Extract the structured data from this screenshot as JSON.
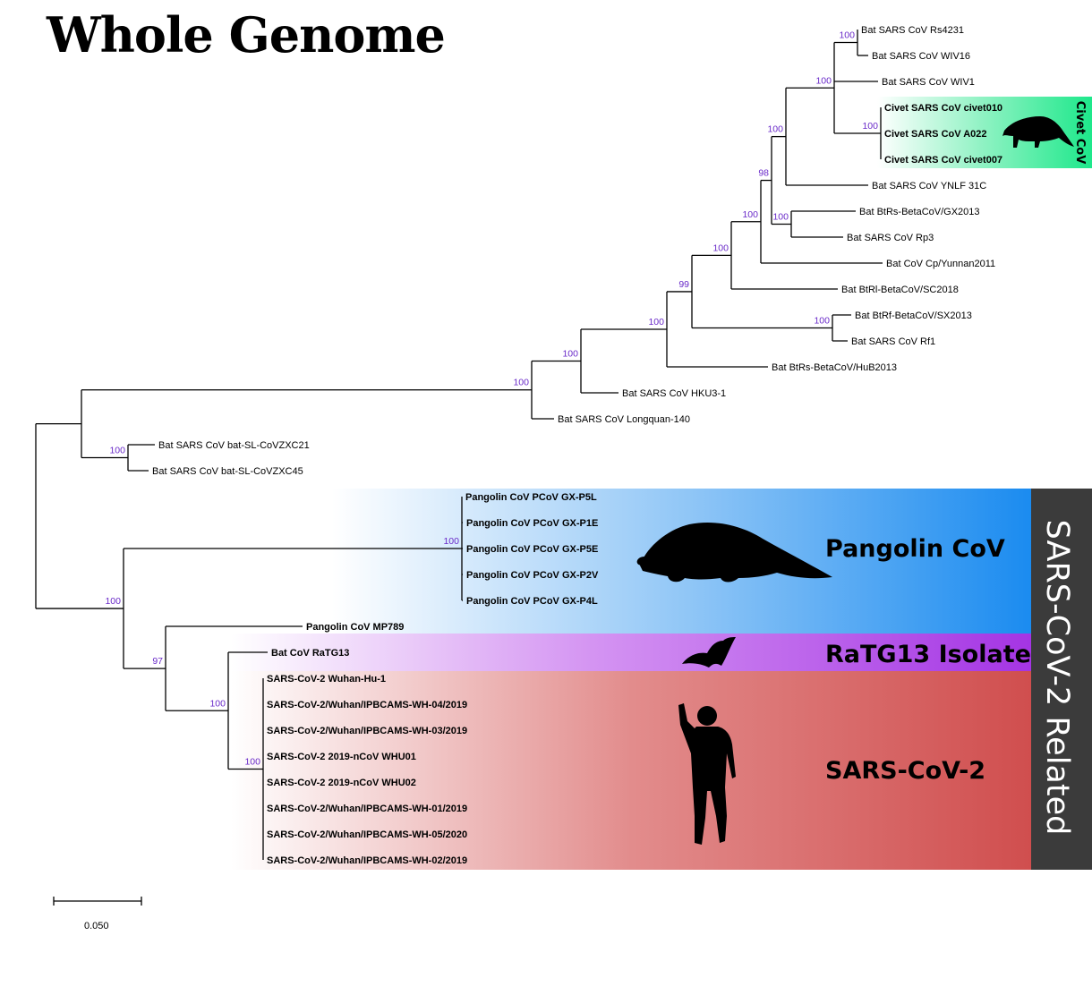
{
  "title": "Whole Genome",
  "colors": {
    "civet": "#1ee88b",
    "pangolin": "#1a8bf0",
    "ratg13": "#a434e4",
    "sars2": "#d45151",
    "related_bar": "#3b3b3b",
    "bootstrap": "#6a2bc9"
  },
  "groups": {
    "civet": "Civet CoV",
    "pangolin": "Pangolin CoV",
    "ratg13": "RaTG13 Isolate",
    "sars2": "SARS-CoV-2",
    "related": "SARS-CoV-2 Related"
  },
  "scale_bar": {
    "value": "0.050"
  },
  "leaves": [
    {
      "id": "rs4231",
      "label": "Bat SARS CoV Rs4231",
      "bold": false
    },
    {
      "id": "wiv16",
      "label": "Bat SARS CoV WIV16",
      "bold": false
    },
    {
      "id": "wiv1",
      "label": "Bat SARS CoV WIV1",
      "bold": false
    },
    {
      "id": "civet010",
      "label": "Civet SARS CoV civet010",
      "bold": true
    },
    {
      "id": "a022",
      "label": "Civet SARS CoV A022",
      "bold": true
    },
    {
      "id": "civet007",
      "label": "Civet SARS CoV civet007",
      "bold": true
    },
    {
      "id": "ynlf",
      "label": "Bat SARS CoV YNLF 31C",
      "bold": false
    },
    {
      "id": "gx2013",
      "label": "Bat BtRs-BetaCoV/GX2013",
      "bold": false
    },
    {
      "id": "rp3",
      "label": "Bat SARS CoV Rp3",
      "bold": false
    },
    {
      "id": "cpyunnan",
      "label": "Bat CoV Cp/Yunnan2011",
      "bold": false
    },
    {
      "id": "sc2018",
      "label": "Bat BtRl-BetaCoV/SC2018",
      "bold": false
    },
    {
      "id": "sx2013",
      "label": "Bat BtRf-BetaCoV/SX2013",
      "bold": false
    },
    {
      "id": "rf1",
      "label": "Bat SARS CoV Rf1",
      "bold": false
    },
    {
      "id": "hub2013",
      "label": "Bat BtRs-BetaCoV/HuB2013",
      "bold": false
    },
    {
      "id": "hku3",
      "label": "Bat SARS CoV HKU3-1",
      "bold": false
    },
    {
      "id": "longquan",
      "label": "Bat SARS CoV Longquan-140",
      "bold": false
    },
    {
      "id": "zc21",
      "label": "Bat SARS CoV bat-SL-CoVZXC21",
      "bold": false
    },
    {
      "id": "zc45",
      "label": "Bat SARS CoV bat-SL-CoVZXC45",
      "bold": false
    },
    {
      "id": "p5l",
      "label": "Pangolin CoV PCoV GX-P5L",
      "bold": true
    },
    {
      "id": "p1e",
      "label": "Pangolin CoV PCoV GX-P1E",
      "bold": true
    },
    {
      "id": "p5e",
      "label": "Pangolin CoV PCoV GX-P5E",
      "bold": true
    },
    {
      "id": "p2v",
      "label": "Pangolin CoV PCoV GX-P2V",
      "bold": true
    },
    {
      "id": "p4l",
      "label": "Pangolin CoV PCoV GX-P4L",
      "bold": true
    },
    {
      "id": "mp789",
      "label": "Pangolin CoV MP789",
      "bold": true
    },
    {
      "id": "ratg13",
      "label": "Bat CoV RaTG13",
      "bold": true
    },
    {
      "id": "hu1",
      "label": "SARS-CoV-2 Wuhan-Hu-1",
      "bold": true
    },
    {
      "id": "wh04",
      "label": "SARS-CoV-2/Wuhan/IPBCAMS-WH-04/2019",
      "bold": true
    },
    {
      "id": "wh03",
      "label": "SARS-CoV-2/Wuhan/IPBCAMS-WH-03/2019",
      "bold": true
    },
    {
      "id": "whu01",
      "label": "SARS-CoV-2 2019-nCoV WHU01",
      "bold": true
    },
    {
      "id": "whu02",
      "label": "SARS-CoV-2 2019-nCoV WHU02",
      "bold": true
    },
    {
      "id": "wh01",
      "label": "SARS-CoV-2/Wuhan/IPBCAMS-WH-01/2019",
      "bold": true
    },
    {
      "id": "wh05",
      "label": "SARS-CoV-2/Wuhan/IPBCAMS-WH-05/2020",
      "bold": true
    },
    {
      "id": "wh02",
      "label": "SARS-CoV-2/Wuhan/IPBCAMS-WH-02/2019",
      "bold": true
    }
  ],
  "bootstrap": [
    {
      "id": "n_rs_wiv16",
      "value": "100"
    },
    {
      "id": "n_wiv_group",
      "value": "100"
    },
    {
      "id": "n_civet",
      "value": "100"
    },
    {
      "id": "n_ynlf",
      "value": "100"
    },
    {
      "id": "n_98",
      "value": "98"
    },
    {
      "id": "n_gx_rp3",
      "value": "100"
    },
    {
      "id": "n_cp",
      "value": "100"
    },
    {
      "id": "n_sc",
      "value": "100"
    },
    {
      "id": "n_99",
      "value": "99"
    },
    {
      "id": "n_rf",
      "value": "100"
    },
    {
      "id": "n_hub",
      "value": "100"
    },
    {
      "id": "n_hku",
      "value": "100"
    },
    {
      "id": "n_long",
      "value": "100"
    },
    {
      "id": "n_zxc",
      "value": "100"
    },
    {
      "id": "n_pango",
      "value": "100"
    },
    {
      "id": "n_sarsrel",
      "value": "100"
    },
    {
      "id": "n_97",
      "value": "97"
    },
    {
      "id": "n_ratg",
      "value": "100"
    },
    {
      "id": "n_sars2",
      "value": "100"
    }
  ]
}
